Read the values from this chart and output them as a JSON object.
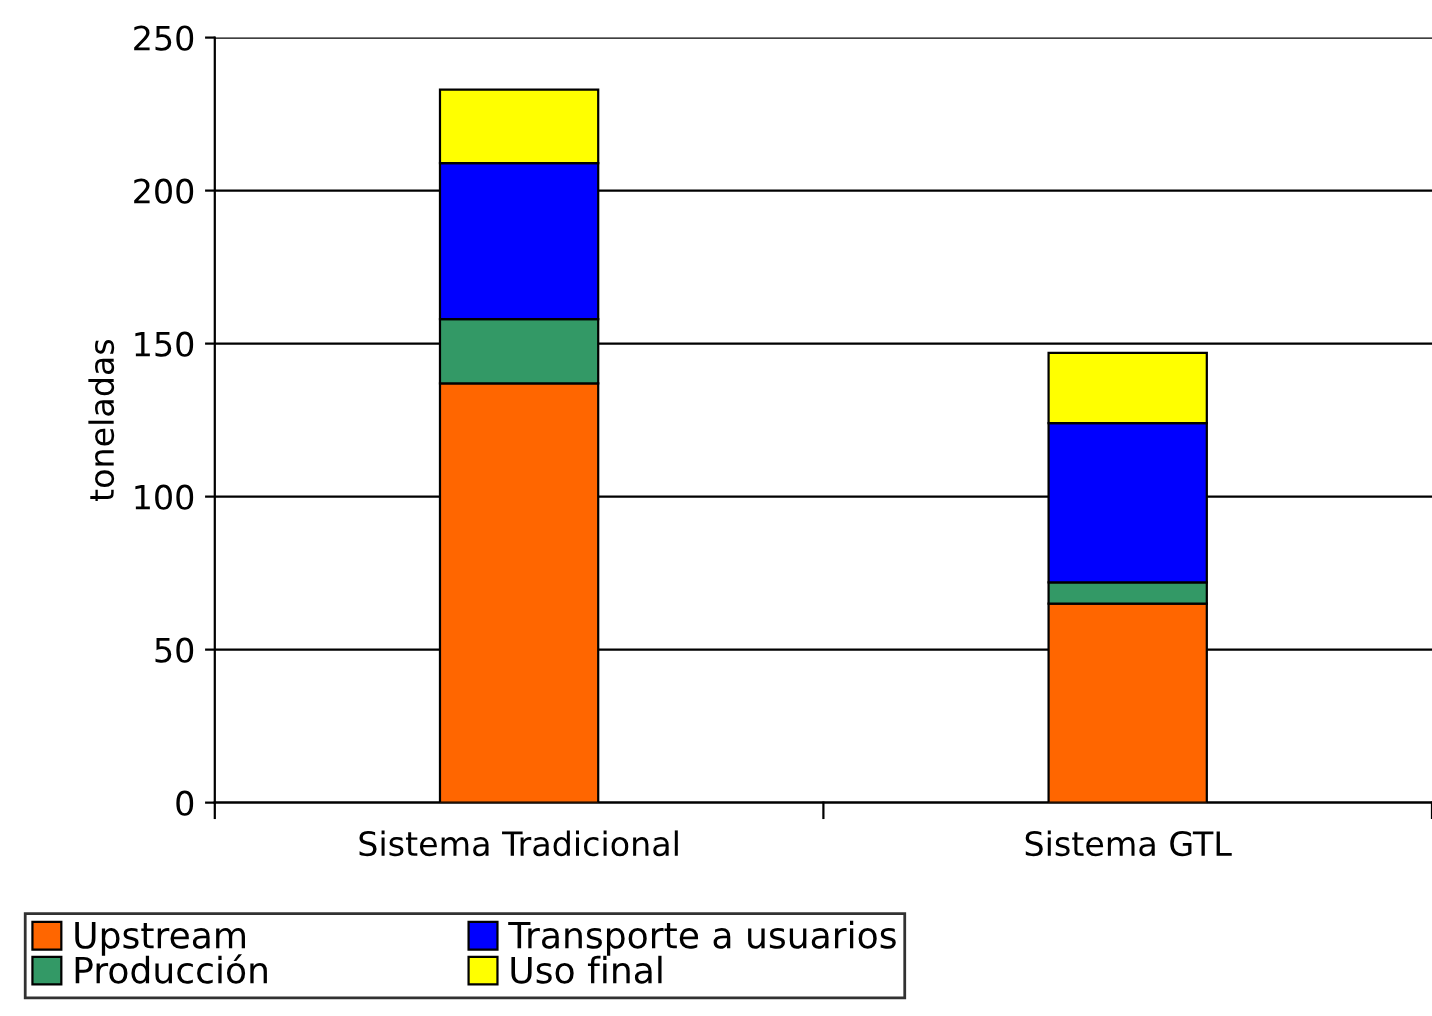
{
  "chart_data": {
    "type": "bar",
    "stacked": true,
    "ylabel": "toneladas",
    "categories": [
      "Sistema Tradicional",
      "Sistema GTL"
    ],
    "series": [
      {
        "name": "Upstream",
        "color": "#ff6600",
        "values": [
          137,
          65
        ]
      },
      {
        "name": "Producción",
        "color": "#339966",
        "values": [
          21,
          7
        ]
      },
      {
        "name": "Transporte a usuarios",
        "color": "#0000ff",
        "values": [
          51,
          52
        ]
      },
      {
        "name": "Uso final",
        "color": "#ffff00",
        "values": [
          24,
          23
        ]
      }
    ],
    "ylim": [
      0,
      250
    ],
    "yticks": [
      0,
      50,
      100,
      150,
      200,
      250
    ],
    "grid": "y",
    "legend": "bottom"
  }
}
